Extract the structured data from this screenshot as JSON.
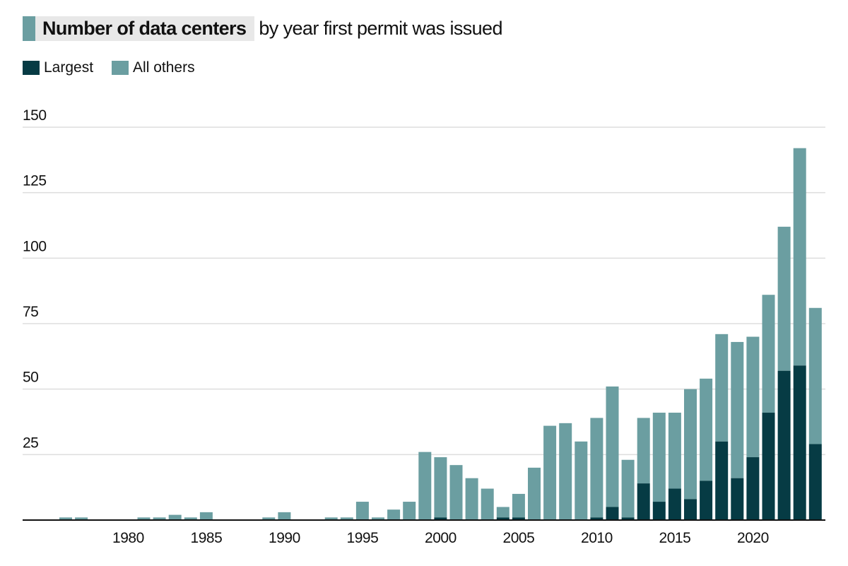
{
  "title": {
    "highlight": "Number of data centers",
    "rest": "by year first permit was issued"
  },
  "colors": {
    "largest": "#063b44",
    "others": "#6b9ea1",
    "title_highlight_bg": "#e8e8e8",
    "gridline": "#dddddd",
    "axis": "#111111"
  },
  "legend": [
    {
      "key": "largest",
      "label": "Largest"
    },
    {
      "key": "others",
      "label": "All others"
    }
  ],
  "chart_data": {
    "type": "bar",
    "stacked": true,
    "title": "Number of data centers by year first permit was issued",
    "xlabel": "",
    "ylabel": "",
    "ylim": [
      0,
      150
    ],
    "yticks": [
      25,
      50,
      75,
      100,
      125,
      150
    ],
    "xticks": [
      1980,
      1985,
      1990,
      1995,
      2000,
      2005,
      2010,
      2015,
      2020
    ],
    "xlim": [
      1976,
      2024
    ],
    "grid": true,
    "legend_position": "top-left",
    "categories": [
      1976,
      1977,
      1978,
      1979,
      1980,
      1981,
      1982,
      1983,
      1984,
      1985,
      1986,
      1987,
      1988,
      1989,
      1990,
      1991,
      1992,
      1993,
      1994,
      1995,
      1996,
      1997,
      1998,
      1999,
      2000,
      2001,
      2002,
      2003,
      2004,
      2005,
      2006,
      2007,
      2008,
      2009,
      2010,
      2011,
      2012,
      2013,
      2014,
      2015,
      2016,
      2017,
      2018,
      2019,
      2020,
      2021,
      2022,
      2023,
      2024
    ],
    "totals": [
      1,
      1,
      0,
      0,
      0,
      1,
      1,
      2,
      1,
      3,
      0,
      0,
      0,
      1,
      3,
      0,
      0,
      1,
      1,
      7,
      1,
      4,
      7,
      26,
      24,
      21,
      16,
      12,
      5,
      10,
      20,
      36,
      37,
      30,
      39,
      51,
      23,
      39,
      41,
      41,
      50,
      54,
      71,
      68,
      70,
      86,
      112,
      142,
      81
    ],
    "series": [
      {
        "name": "Largest",
        "key": "largest",
        "values": [
          0,
          0,
          0,
          0,
          0,
          0,
          0,
          0,
          0,
          0,
          0,
          0,
          0,
          0,
          0,
          0,
          0,
          0,
          0,
          0,
          0,
          0,
          0,
          0,
          1,
          0,
          0,
          0,
          1,
          1,
          0,
          0,
          0,
          0,
          1,
          5,
          1,
          14,
          7,
          12,
          8,
          15,
          30,
          16,
          24,
          41,
          57,
          59,
          29
        ]
      },
      {
        "name": "All others",
        "key": "others",
        "values": [
          1,
          1,
          0,
          0,
          0,
          1,
          1,
          2,
          1,
          3,
          0,
          0,
          0,
          1,
          3,
          0,
          0,
          1,
          1,
          7,
          1,
          4,
          7,
          26,
          23,
          21,
          16,
          12,
          4,
          9,
          20,
          36,
          37,
          30,
          38,
          46,
          22,
          25,
          34,
          29,
          42,
          39,
          41,
          52,
          46,
          45,
          55,
          83,
          52
        ]
      }
    ]
  }
}
